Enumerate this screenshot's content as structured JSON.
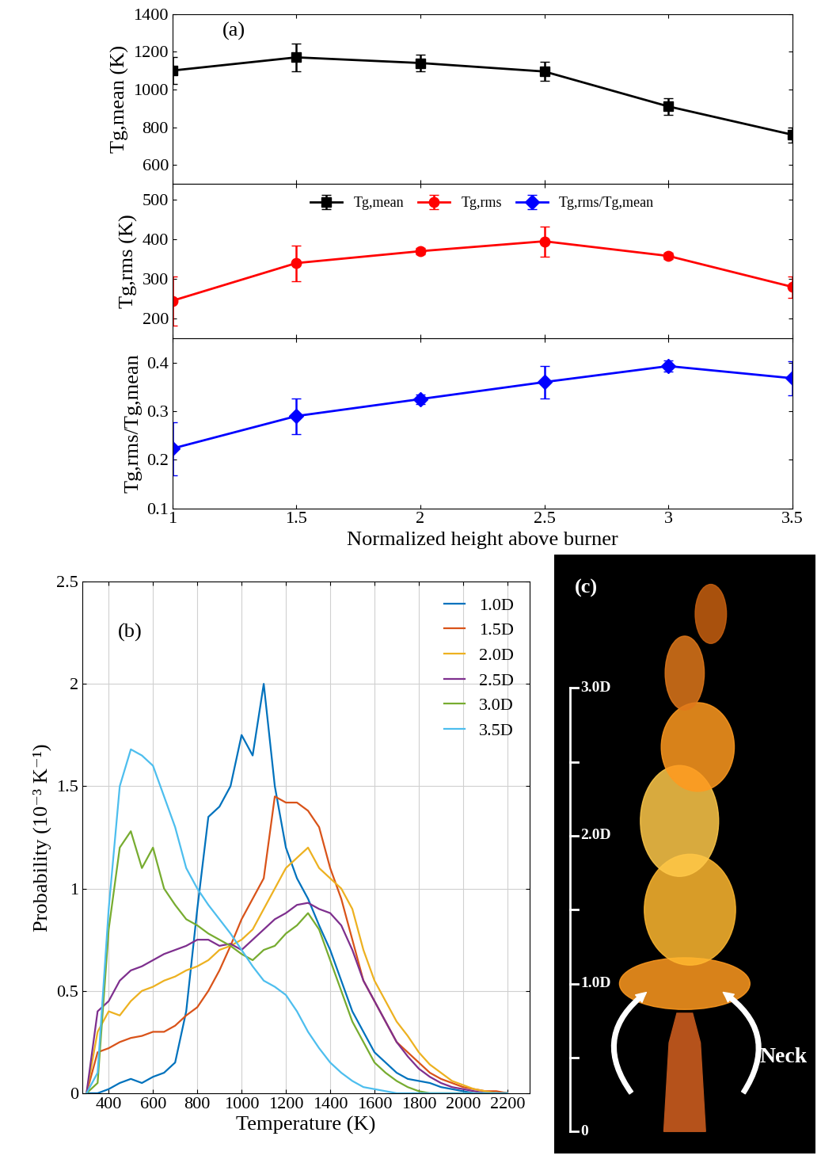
{
  "chart_data": [
    {
      "type": "errorbar",
      "ylabel": "Tg,mean (K)",
      "annotation": "(a)",
      "x": [
        1,
        1.5,
        2,
        2.5,
        3,
        3.5
      ],
      "series": [
        {
          "name": "Tg,mean",
          "color": "#000000",
          "marker": "square",
          "line_style": "solid",
          "values": [
            1100,
            1170,
            1140,
            1095,
            910,
            760
          ],
          "errors": [
            70,
            75,
            45,
            50,
            45,
            40
          ]
        }
      ],
      "xlim": [
        1,
        3.5
      ],
      "xticks": [
        1,
        1.5,
        2,
        2.5,
        3,
        3.5
      ],
      "ylim": [
        500,
        1400
      ],
      "yticks": [
        600,
        800,
        1000,
        1200,
        1400
      ],
      "tick_labels": "y"
    },
    {
      "type": "errorbar",
      "ylabel": "Tg,rms (K)",
      "x": [
        1,
        1.5,
        2,
        2.5,
        3,
        3.5
      ],
      "series": [
        {
          "name": "Tg,rms",
          "color": "#ff0000",
          "marker": "circle",
          "line_style": "solid",
          "values": [
            245,
            340,
            370,
            395,
            358,
            280
          ],
          "errors": [
            62,
            45,
            8,
            38,
            8,
            27
          ]
        }
      ],
      "xlim": [
        1,
        3.5
      ],
      "xticks": [
        1,
        1.5,
        2,
        2.5,
        3,
        3.5
      ],
      "ylim": [
        150,
        540
      ],
      "yticks": [
        200,
        300,
        400,
        500
      ],
      "tick_labels": "y",
      "legend": "upper center"
    },
    {
      "type": "errorbar",
      "ylabel": "Tg,rms/Tg,mean",
      "xlabel": "Normalized height above burner",
      "x": [
        1,
        1.5,
        2,
        2.5,
        3,
        3.5
      ],
      "series": [
        {
          "name": "Tg,rms/Tg,mean",
          "color": "#0000ff",
          "marker": "diamond",
          "line_style": "solid",
          "values": [
            0.223,
            0.29,
            0.325,
            0.36,
            0.393,
            0.368
          ],
          "errors": [
            0.055,
            0.037,
            0.01,
            0.033,
            0.012,
            0.035
          ]
        }
      ],
      "xlim": [
        1,
        3.5
      ],
      "xticks": [
        1,
        1.5,
        2,
        2.5,
        3,
        3.5
      ],
      "ylim": [
        0.1,
        0.45
      ],
      "yticks": [
        0.1,
        0.2,
        0.3,
        0.4
      ]
    },
    {
      "type": "line",
      "xlabel": "Temperature (K)",
      "ylabel": "Probability (10⁻³ K⁻¹)",
      "annotation": "(b)",
      "x": [
        300,
        350,
        400,
        450,
        500,
        550,
        600,
        650,
        700,
        750,
        800,
        850,
        900,
        950,
        1000,
        1050,
        1100,
        1150,
        1200,
        1250,
        1300,
        1350,
        1400,
        1450,
        1500,
        1550,
        1600,
        1650,
        1700,
        1750,
        1800,
        1850,
        1900,
        1950,
        2000,
        2050,
        2100,
        2150,
        2200
      ],
      "series": [
        {
          "name": "1.0D",
          "color": "#0072bd",
          "values": [
            0,
            0,
            0.02,
            0.05,
            0.07,
            0.05,
            0.08,
            0.1,
            0.15,
            0.4,
            0.9,
            1.35,
            1.4,
            1.5,
            1.75,
            1.65,
            2.0,
            1.5,
            1.2,
            1.05,
            0.95,
            0.82,
            0.7,
            0.55,
            0.4,
            0.3,
            0.2,
            0.15,
            0.1,
            0.07,
            0.06,
            0.05,
            0.03,
            0.02,
            0.01,
            0,
            0,
            0,
            0
          ]
        },
        {
          "name": "1.5D",
          "color": "#d95319",
          "values": [
            0,
            0.2,
            0.22,
            0.25,
            0.27,
            0.28,
            0.3,
            0.3,
            0.33,
            0.38,
            0.42,
            0.5,
            0.6,
            0.72,
            0.85,
            0.95,
            1.05,
            1.45,
            1.42,
            1.42,
            1.38,
            1.3,
            1.1,
            0.95,
            0.75,
            0.55,
            0.45,
            0.35,
            0.25,
            0.2,
            0.15,
            0.1,
            0.07,
            0.05,
            0.03,
            0.02,
            0.01,
            0.01,
            0
          ]
        },
        {
          "name": "2.0D",
          "color": "#edb120",
          "values": [
            0,
            0.3,
            0.4,
            0.38,
            0.45,
            0.5,
            0.52,
            0.55,
            0.57,
            0.6,
            0.62,
            0.65,
            0.7,
            0.72,
            0.75,
            0.8,
            0.9,
            1.0,
            1.1,
            1.15,
            1.2,
            1.1,
            1.05,
            1.0,
            0.9,
            0.7,
            0.55,
            0.45,
            0.35,
            0.28,
            0.2,
            0.14,
            0.1,
            0.06,
            0.04,
            0.02,
            0.01,
            0,
            0
          ]
        },
        {
          "name": "2.5D",
          "color": "#7e2f8e",
          "values": [
            0,
            0.4,
            0.45,
            0.55,
            0.6,
            0.62,
            0.65,
            0.68,
            0.7,
            0.72,
            0.75,
            0.75,
            0.72,
            0.73,
            0.7,
            0.75,
            0.8,
            0.85,
            0.88,
            0.92,
            0.93,
            0.9,
            0.88,
            0.82,
            0.7,
            0.55,
            0.45,
            0.35,
            0.25,
            0.18,
            0.12,
            0.08,
            0.05,
            0.03,
            0.02,
            0.01,
            0,
            0,
            0
          ]
        },
        {
          "name": "3.0D",
          "color": "#77ac30",
          "values": [
            0,
            0.05,
            0.8,
            1.2,
            1.28,
            1.1,
            1.2,
            1.0,
            0.92,
            0.85,
            0.82,
            0.78,
            0.75,
            0.72,
            0.68,
            0.65,
            0.7,
            0.72,
            0.78,
            0.82,
            0.88,
            0.8,
            0.65,
            0.5,
            0.35,
            0.25,
            0.15,
            0.1,
            0.06,
            0.03,
            0.01,
            0,
            0,
            0,
            0,
            0,
            0,
            0,
            0
          ]
        },
        {
          "name": "3.5D",
          "color": "#4dbeee",
          "values": [
            0,
            0.1,
            0.9,
            1.5,
            1.68,
            1.65,
            1.6,
            1.45,
            1.3,
            1.1,
            1.0,
            0.92,
            0.85,
            0.78,
            0.7,
            0.62,
            0.55,
            0.52,
            0.48,
            0.4,
            0.3,
            0.22,
            0.15,
            0.1,
            0.06,
            0.03,
            0.02,
            0.01,
            0,
            0,
            0,
            0,
            0,
            0,
            0,
            0,
            0,
            0,
            0
          ]
        }
      ],
      "xlim": [
        280,
        2300
      ],
      "xticks": [
        400,
        600,
        800,
        1000,
        1200,
        1400,
        1600,
        1800,
        2000,
        2200
      ],
      "ylim": [
        0,
        2.5
      ],
      "yticks": [
        0,
        0.5,
        1,
        1.5,
        2,
        2.5
      ],
      "grid": true,
      "legend": "upper right"
    }
  ],
  "photo": {
    "label": "(c)",
    "scale_labels": [
      "0",
      "1.0D",
      "2.0D",
      "3.0D"
    ],
    "annotation": "Neck"
  }
}
